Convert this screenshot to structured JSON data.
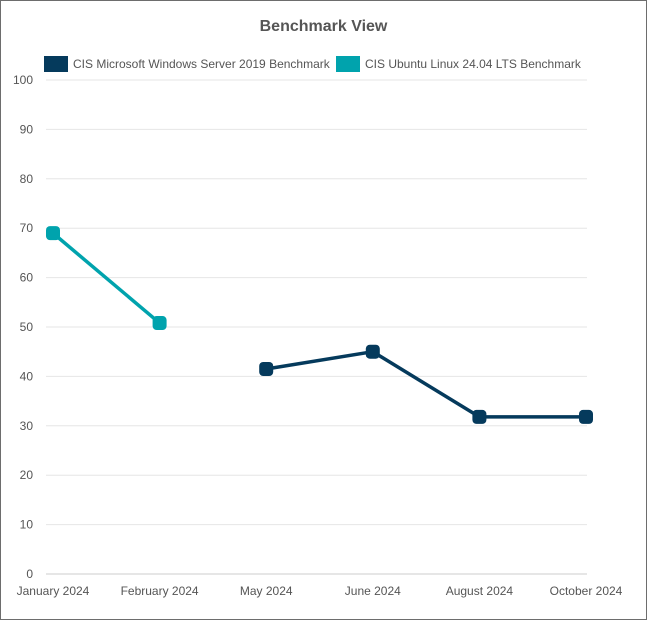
{
  "chart_data": {
    "type": "line",
    "title": "Benchmark View",
    "xlabel": "",
    "ylabel": "",
    "categories": [
      "January 2024",
      "February 2024",
      "May 2024",
      "June 2024",
      "August 2024",
      "October 2024"
    ],
    "ylim": [
      0,
      100
    ],
    "yticks": [
      0,
      10,
      20,
      30,
      40,
      50,
      60,
      70,
      80,
      90,
      100
    ],
    "grid": true,
    "legend_position": "top-left",
    "series": [
      {
        "name": "CIS Microsoft Windows Server 2019 Benchmark",
        "color": "#053a5c",
        "values": [
          null,
          null,
          41.5,
          45,
          31.8,
          31.8
        ]
      },
      {
        "name": "CIS Ubuntu Linux 24.04 LTS Benchmark",
        "color": "#00a3ad",
        "values": [
          69,
          50.8,
          null,
          null,
          null,
          null
        ]
      }
    ]
  }
}
